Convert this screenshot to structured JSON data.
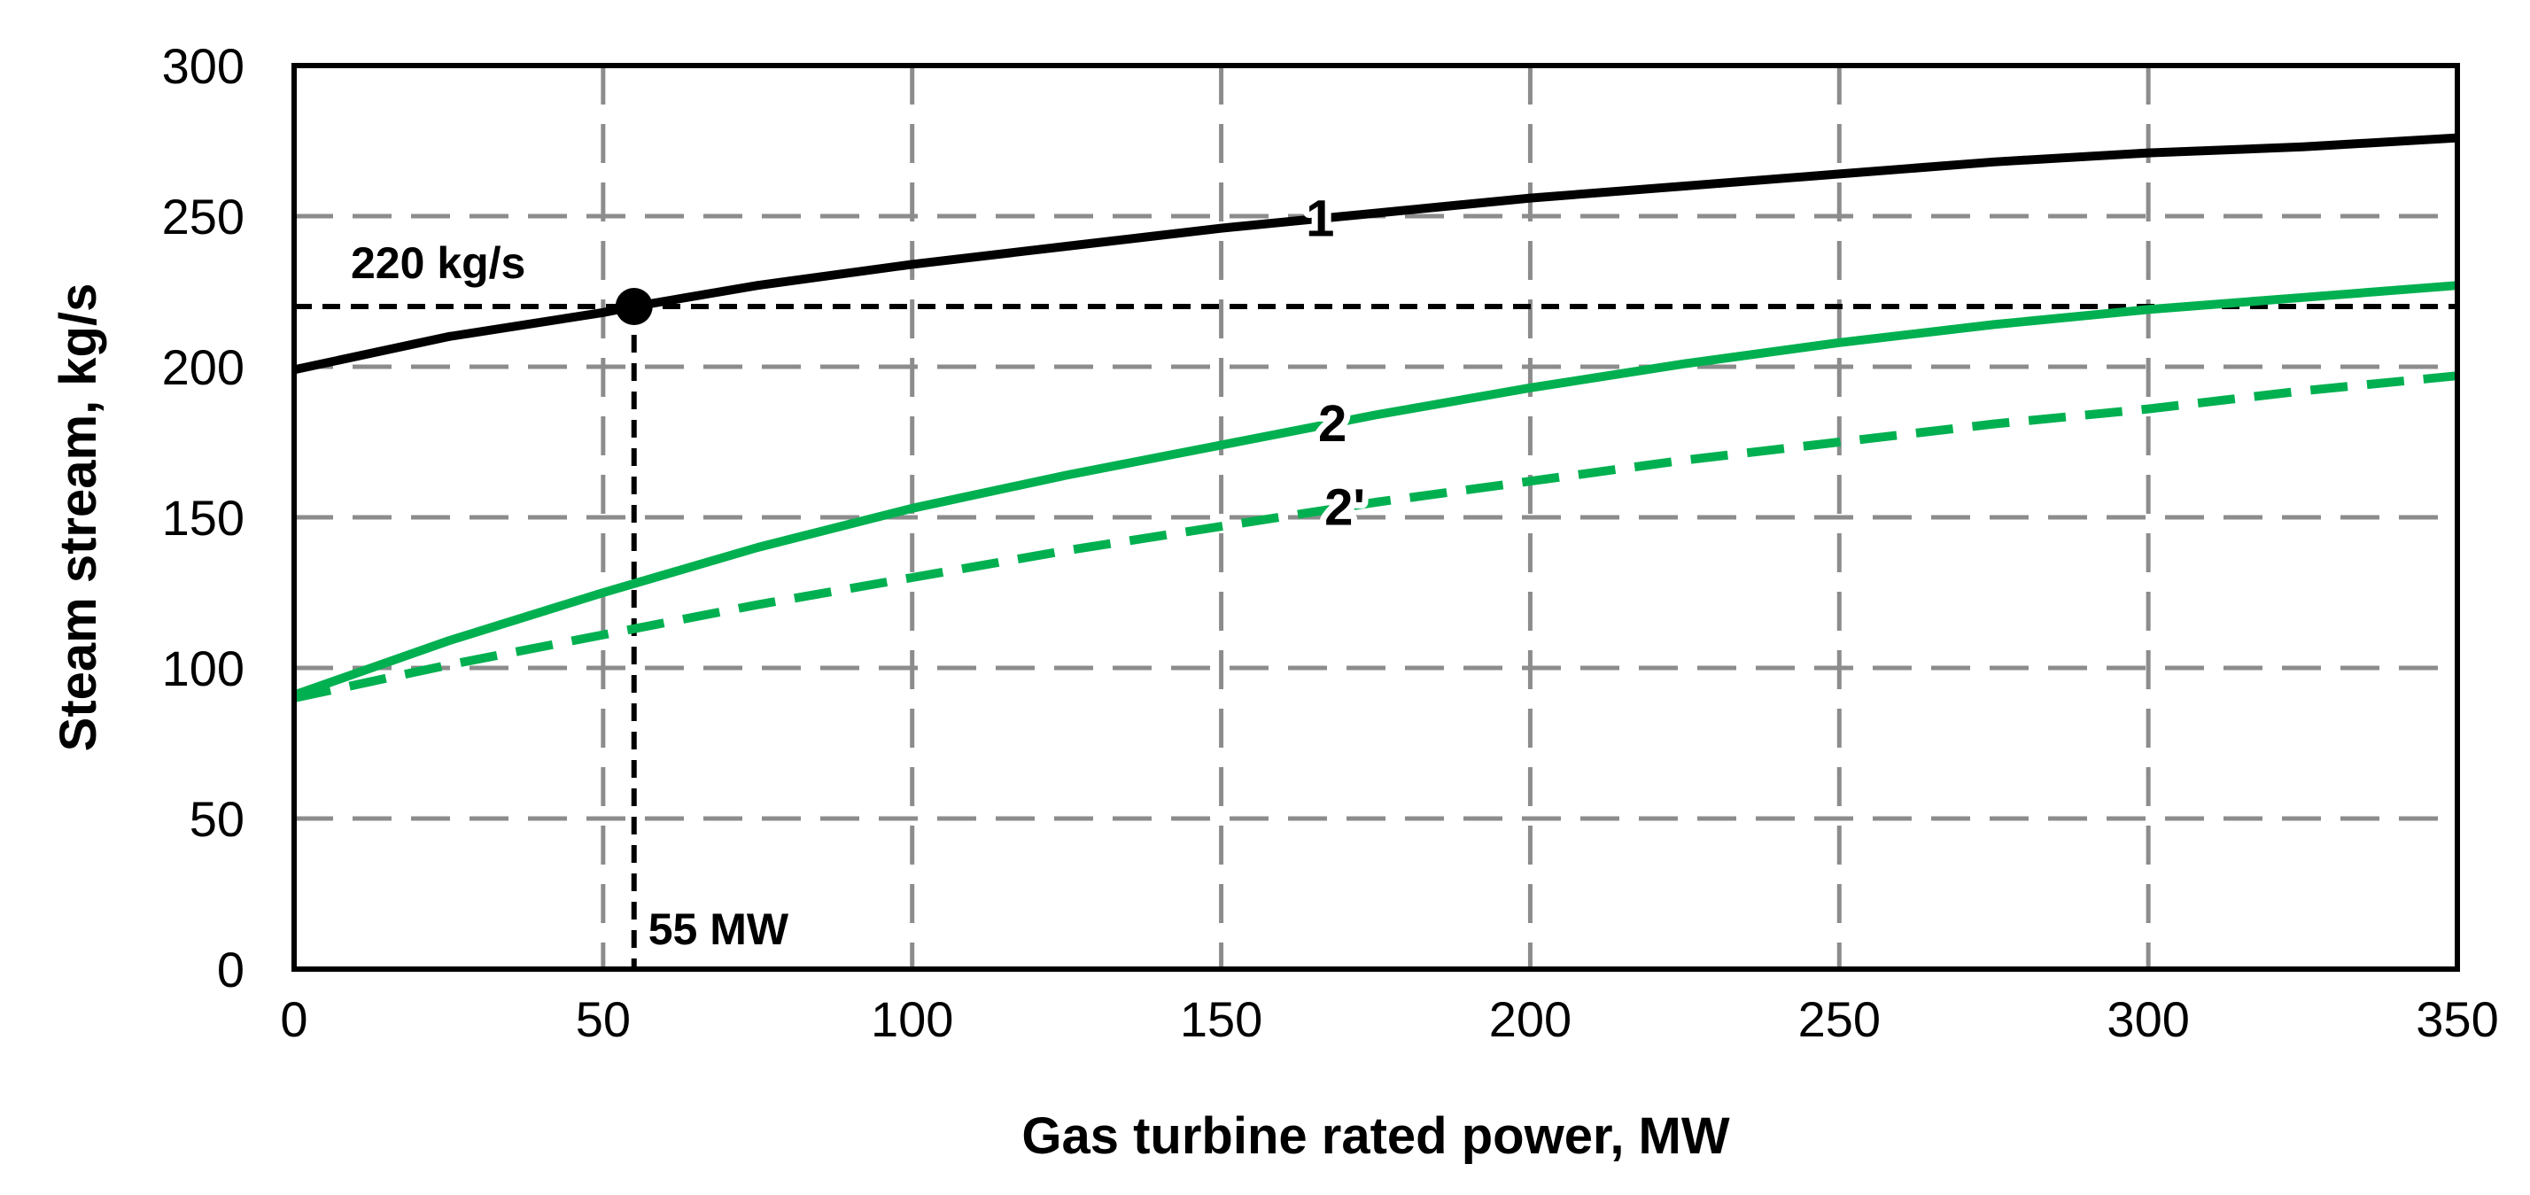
{
  "chart_data": {
    "type": "line",
    "title": "",
    "xlabel": "Gas turbine rated power, MW",
    "ylabel": "Steam stream, kg/s",
    "xlim": [
      0,
      350
    ],
    "ylim": [
      0,
      300
    ],
    "xticks": [
      0,
      50,
      100,
      150,
      200,
      250,
      300,
      350
    ],
    "yticks": [
      0,
      50,
      100,
      150,
      200,
      250,
      300
    ],
    "xtick_labels": [
      "0",
      "50",
      "100",
      "150",
      "200",
      "250",
      "300",
      "350"
    ],
    "ytick_labels": [
      "0",
      "50",
      "100",
      "150",
      "200",
      "250",
      "300"
    ],
    "grid": true,
    "series": [
      {
        "name": "1",
        "label": "1",
        "color": "#000000",
        "style": "solid",
        "label_at": 166,
        "x": [
          0,
          25,
          50,
          55,
          75,
          100,
          125,
          150,
          175,
          200,
          225,
          250,
          275,
          300,
          325,
          350
        ],
        "y": [
          199,
          210,
          218,
          220,
          227,
          234,
          240,
          246,
          251,
          256,
          260,
          264,
          268,
          271,
          273,
          276
        ]
      },
      {
        "name": "2",
        "label": "2",
        "color": "#00b050",
        "style": "solid",
        "label_at": 168,
        "x": [
          0,
          25,
          50,
          75,
          100,
          125,
          150,
          175,
          200,
          225,
          250,
          275,
          300,
          325,
          350
        ],
        "y": [
          91,
          109,
          125,
          140,
          153,
          164,
          174,
          184,
          193,
          201,
          208,
          214,
          219,
          223,
          227
        ]
      },
      {
        "name": "2'",
        "label": "2'",
        "color": "#00b050",
        "style": "dashed",
        "label_at": 170,
        "x": [
          0,
          25,
          50,
          75,
          100,
          125,
          150,
          175,
          200,
          225,
          250,
          275,
          300,
          325,
          350
        ],
        "y": [
          90,
          101,
          111,
          121,
          130,
          139,
          147,
          155,
          162,
          169,
          175,
          181,
          186,
          192,
          197
        ]
      }
    ],
    "reference_point": {
      "x": 55,
      "y": 220
    },
    "annotations": {
      "y_ref_label": "220 kg/s",
      "x_ref_label": "55 MW"
    }
  }
}
